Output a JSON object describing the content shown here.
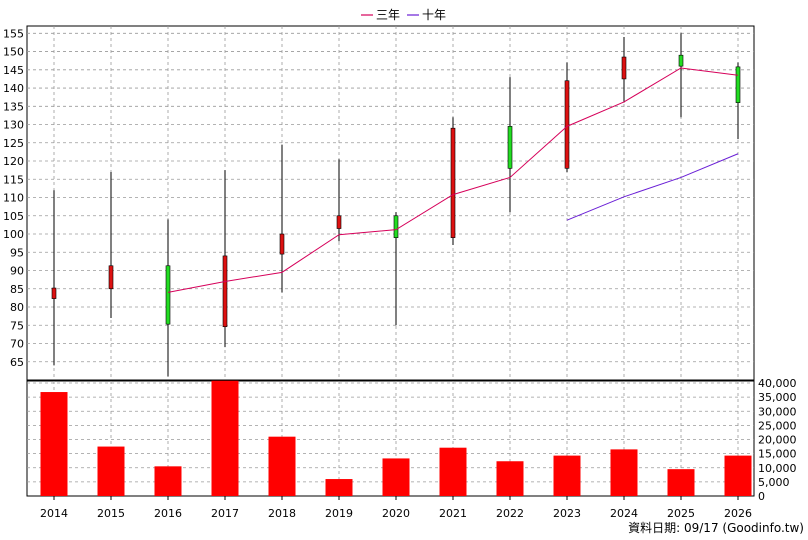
{
  "legend": {
    "items": [
      {
        "label": "三年",
        "color": "#d6005a"
      },
      {
        "label": "十年",
        "color": "#6a1fd6"
      }
    ]
  },
  "footer_text": "資料日期: 09/17 (Goodinfo.tw)",
  "chart_data": [
    {
      "type": "candlestick",
      "categories": [
        "2014",
        "2015",
        "2016",
        "2017",
        "2018",
        "2019",
        "2020",
        "2021",
        "2022",
        "2023",
        "2024",
        "2025",
        "2026"
      ],
      "ylim": [
        60,
        157
      ],
      "yticks": [
        65,
        70,
        75,
        80,
        85,
        90,
        95,
        100,
        105,
        110,
        115,
        120,
        125,
        130,
        135,
        140,
        145,
        150,
        155
      ],
      "grid": true,
      "up_color": "#22dd22",
      "down_color": "#dd1111",
      "candles": [
        {
          "x": "2014",
          "open": 85.2,
          "close": 82.3,
          "high": 112,
          "low": 64,
          "dir": "down"
        },
        {
          "x": "2015",
          "open": 91.3,
          "close": 85.0,
          "high": 117,
          "low": 77,
          "dir": "down"
        },
        {
          "x": "2016",
          "open": 75.3,
          "close": 91.3,
          "high": 104,
          "low": 61,
          "dir": "up"
        },
        {
          "x": "2017",
          "open": 94.0,
          "close": 74.6,
          "high": 117.5,
          "low": 69,
          "dir": "down"
        },
        {
          "x": "2018",
          "open": 100.0,
          "close": 94.5,
          "high": 124.5,
          "low": 84,
          "dir": "down"
        },
        {
          "x": "2019",
          "open": 105.0,
          "close": 101.5,
          "high": 120.5,
          "low": 98,
          "dir": "down"
        },
        {
          "x": "2020",
          "open": 99.0,
          "close": 105.0,
          "high": 106,
          "low": 75,
          "dir": "up"
        },
        {
          "x": "2021",
          "open": 129.0,
          "close": 99.0,
          "high": 132,
          "low": 97,
          "dir": "down"
        },
        {
          "x": "2022",
          "open": 118.0,
          "close": 129.5,
          "high": 143,
          "low": 106,
          "dir": "up"
        },
        {
          "x": "2023",
          "open": 142.0,
          "close": 118.0,
          "high": 147,
          "low": 117,
          "dir": "down"
        },
        {
          "x": "2024",
          "open": 148.5,
          "close": 142.5,
          "high": 154,
          "low": 136,
          "dir": "down"
        },
        {
          "x": "2025",
          "open": 146.0,
          "close": 149.0,
          "high": 155,
          "low": 132,
          "dir": "up"
        },
        {
          "x": "2026",
          "open": 136.0,
          "close": 145.8,
          "high": 147,
          "low": 126,
          "dir": "up"
        }
      ],
      "series": [
        {
          "name": "三年",
          "color": "#d6005a",
          "x": [
            "2016",
            "2017",
            "2018",
            "2019",
            "2020",
            "2021",
            "2022",
            "2023",
            "2024",
            "2025",
            "2026"
          ],
          "values": [
            84.0,
            87.0,
            89.5,
            99.8,
            101.2,
            110.8,
            115.5,
            129.5,
            136.2,
            145.5,
            143.5
          ]
        },
        {
          "name": "十年",
          "color": "#6a1fd6",
          "x": [
            "2023",
            "2024",
            "2025",
            "2026"
          ],
          "values": [
            103.8,
            110.2,
            115.5,
            122.0
          ]
        }
      ]
    },
    {
      "type": "bar",
      "categories": [
        "2014",
        "2015",
        "2016",
        "2017",
        "2018",
        "2019",
        "2020",
        "2021",
        "2022",
        "2023",
        "2024",
        "2025",
        "2026"
      ],
      "values": [
        36800,
        17500,
        10500,
        40800,
        21000,
        6000,
        13300,
        17100,
        12300,
        14300,
        16500,
        9500,
        14300
      ],
      "ylim": [
        0,
        40000
      ],
      "yticks": [
        0,
        5000,
        10000,
        15000,
        20000,
        25000,
        30000,
        35000,
        40000
      ],
      "ytick_labels": [
        "0",
        "5,000",
        "10,000",
        "15,000",
        "20,000",
        "25,000",
        "30,000",
        "35,000",
        "40,000"
      ],
      "bar_color": "#ff0000",
      "grid": true
    }
  ]
}
